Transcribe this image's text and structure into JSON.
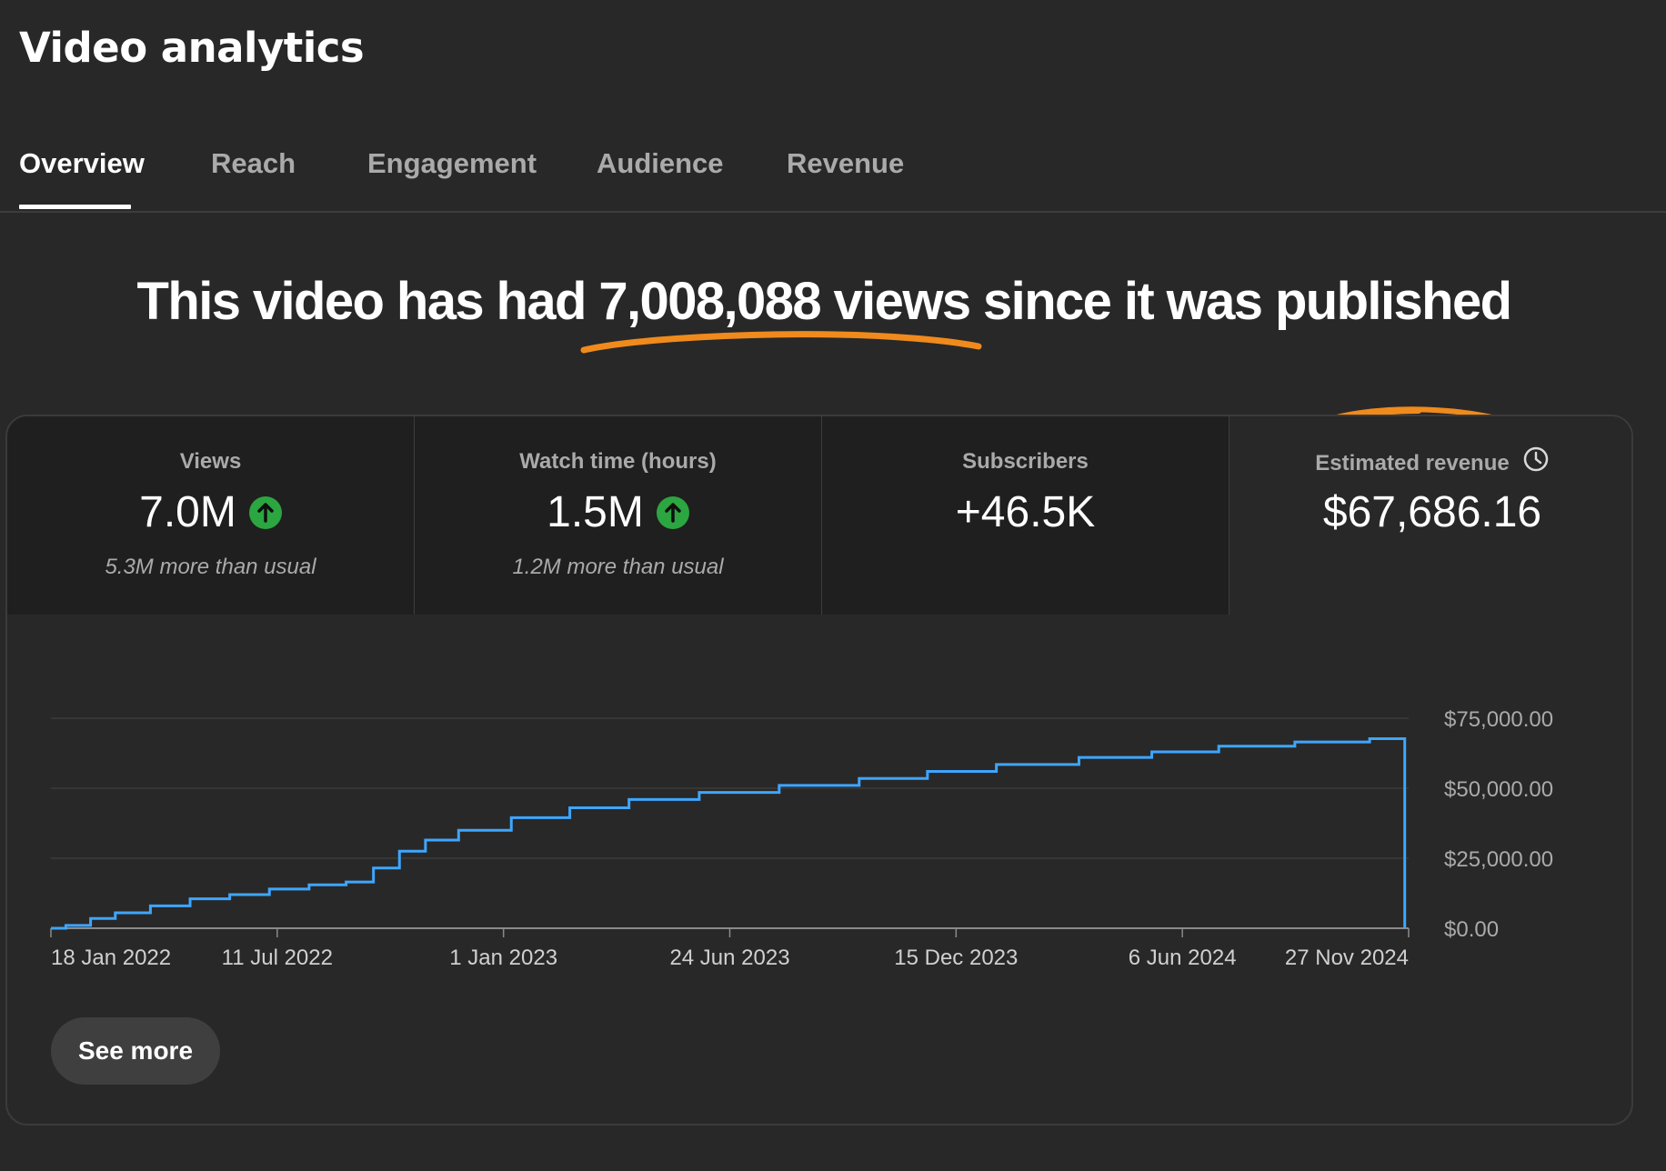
{
  "page": {
    "title": "Video analytics"
  },
  "tabs": [
    {
      "label": "Overview",
      "active": true
    },
    {
      "label": "Reach",
      "active": false
    },
    {
      "label": "Engagement",
      "active": false
    },
    {
      "label": "Audience",
      "active": false
    },
    {
      "label": "Revenue",
      "active": false
    }
  ],
  "headline": {
    "before": "This video has had ",
    "highlight": "7,008,088 views",
    "after": " since it was published"
  },
  "kpis": [
    {
      "label": "Views",
      "value": "7.0M",
      "trend_icon": "arrow-up-icon",
      "note": "5.3M more than usual"
    },
    {
      "label": "Watch time (hours)",
      "value": "1.5M",
      "trend_icon": "arrow-up-icon",
      "note": "1.2M more than usual"
    },
    {
      "label": "Subscribers",
      "value": "+46.5K"
    },
    {
      "label": "Estimated revenue",
      "value": "$67,686.16",
      "info_icon": "clock-icon",
      "selected": true
    }
  ],
  "chart_data": {
    "type": "line",
    "metric": "Estimated revenue",
    "x_axis_ticks": [
      "18 Jan 2022",
      "11 Jul 2022",
      "1 Jan 2023",
      "24 Jun 2023",
      "15 Dec 2023",
      "6 Jun 2024",
      "27 Nov 2024"
    ],
    "y_axis_ticks": [
      "$0.00",
      "$25,000.00",
      "$50,000.00",
      "$75,000.00"
    ],
    "ylim": [
      0,
      75000
    ],
    "xlim": [
      "2022-01-18",
      "2024-11-27"
    ],
    "grid": true,
    "series": [
      {
        "color": "#3ea6ff",
        "points": [
          [
            "2022-01-18",
            0
          ],
          [
            "2022-02-10",
            1000
          ],
          [
            "2022-02-25",
            3500
          ],
          [
            "2022-03-20",
            5500
          ],
          [
            "2022-04-20",
            8000
          ],
          [
            "2022-05-20",
            10500
          ],
          [
            "2022-06-20",
            12000
          ],
          [
            "2022-07-20",
            14000
          ],
          [
            "2022-08-20",
            15500
          ],
          [
            "2022-09-15",
            16500
          ],
          [
            "2022-10-01",
            21500
          ],
          [
            "2022-10-25",
            27500
          ],
          [
            "2022-11-10",
            31500
          ],
          [
            "2022-12-15",
            35000
          ],
          [
            "2023-01-30",
            39500
          ],
          [
            "2023-03-15",
            43000
          ],
          [
            "2023-05-01",
            46000
          ],
          [
            "2023-07-01",
            48500
          ],
          [
            "2023-09-01",
            51000
          ],
          [
            "2023-11-01",
            53500
          ],
          [
            "2023-12-15",
            56000
          ],
          [
            "2024-02-15",
            58500
          ],
          [
            "2024-04-20",
            61000
          ],
          [
            "2024-06-06",
            63000
          ],
          [
            "2024-08-01",
            65000
          ],
          [
            "2024-10-01",
            66500
          ],
          [
            "2024-11-24",
            67686
          ]
        ]
      }
    ]
  },
  "buttons": {
    "see_more": "See more"
  }
}
